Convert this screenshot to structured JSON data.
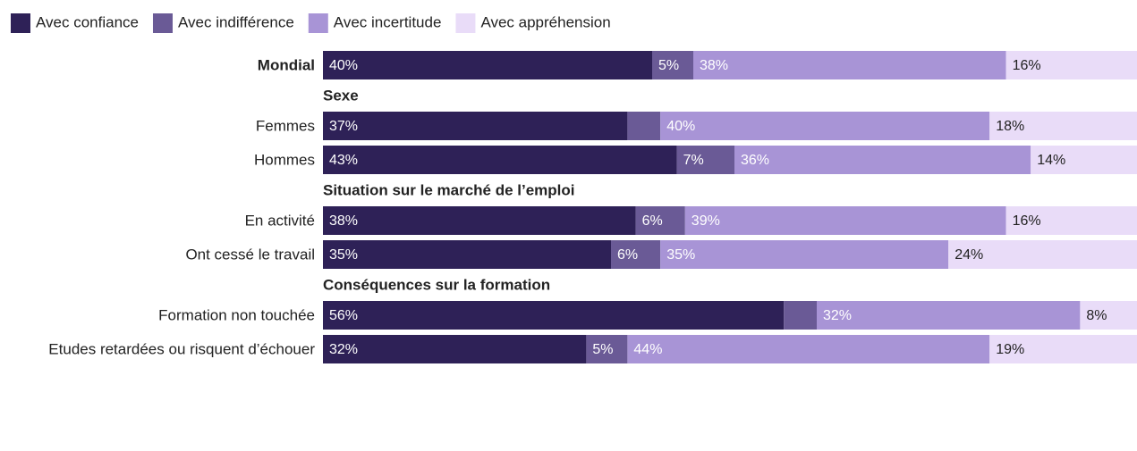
{
  "chart_data": {
    "type": "stacked-bar",
    "groups": [
      {
        "title": null,
        "categories": [
          "Mondial"
        ]
      },
      {
        "title": "Sexe",
        "categories": [
          "Femmes",
          "Hommes"
        ]
      },
      {
        "title": "Situation sur le marché de l’emploi",
        "categories": [
          "En activité",
          "Ont cessé le travail"
        ]
      },
      {
        "title": "Conséquences sur la formation",
        "categories": [
          "Formation non touchée",
          "Etudes retardées ou risquent d’échouer"
        ]
      }
    ],
    "series": [
      {
        "name": "Avec confiance",
        "color": "#2e2157",
        "label_color": "#ffffff",
        "values": [
          40,
          37,
          43,
          38,
          35,
          56,
          32
        ],
        "value_labels": [
          "40%",
          "37%",
          "43%",
          "38%",
          "35%",
          "56%",
          "32%"
        ]
      },
      {
        "name": "Avec indifférence",
        "color": "#6a5a96",
        "label_color": "#ffffff",
        "values": [
          5,
          4,
          7,
          6,
          6,
          4,
          5
        ],
        "value_labels": [
          "5%",
          null,
          "7%",
          "6%",
          "6%",
          null,
          "5%"
        ]
      },
      {
        "name": "Avec incertitude",
        "color": "#a894d6",
        "label_color": "#ffffff",
        "values": [
          38,
          40,
          36,
          39,
          35,
          32,
          44
        ],
        "value_labels": [
          "38%",
          "40%",
          "36%",
          "39%",
          "35%",
          "32%",
          "44%"
        ]
      },
      {
        "name": "Avec appréhension",
        "color": "#e9dcf8",
        "label_color": "#222222",
        "values": [
          16,
          18,
          14,
          16,
          24,
          8,
          19
        ],
        "value_labels": [
          "16%",
          "18%",
          "14%",
          "16%",
          "24%",
          "8%",
          "19%"
        ]
      }
    ]
  }
}
